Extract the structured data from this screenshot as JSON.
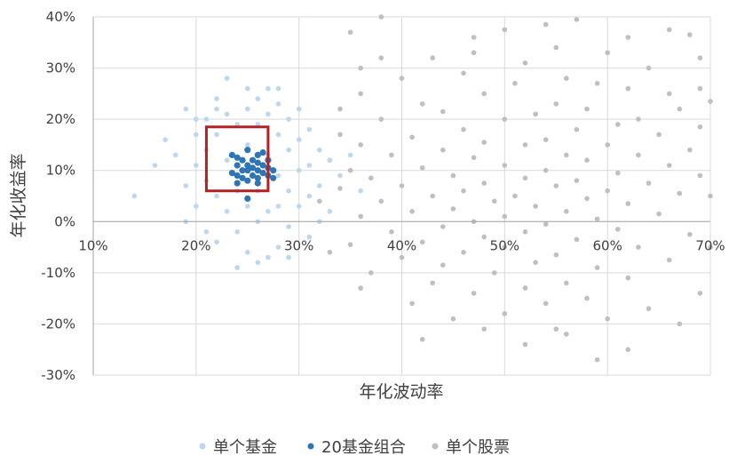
{
  "chart_data": {
    "type": "scatter",
    "title": "",
    "xlabel": "年化波动率",
    "ylabel": "年化收益率",
    "xlim": [
      0.1,
      0.7
    ],
    "ylim": [
      -0.3,
      0.4
    ],
    "x_ticks": [
      {
        "value": 0.1,
        "label": "10%"
      },
      {
        "value": 0.2,
        "label": "20%"
      },
      {
        "value": 0.3,
        "label": "30%"
      },
      {
        "value": 0.4,
        "label": "40%"
      },
      {
        "value": 0.5,
        "label": "50%"
      },
      {
        "value": 0.6,
        "label": "60%"
      },
      {
        "value": 0.7,
        "label": "70%"
      }
    ],
    "y_ticks": [
      {
        "value": 0.4,
        "label": "40%"
      },
      {
        "value": 0.3,
        "label": "30%"
      },
      {
        "value": 0.2,
        "label": "20%"
      },
      {
        "value": 0.1,
        "label": "10%"
      },
      {
        "value": 0.0,
        "label": "0%"
      },
      {
        "value": -0.1,
        "label": "-10%"
      },
      {
        "value": -0.2,
        "label": "-20%"
      },
      {
        "value": -0.3,
        "label": "-30%"
      }
    ],
    "grid": true,
    "legend_position": "bottom",
    "highlight_box": {
      "x": [
        0.21,
        0.27
      ],
      "y": [
        0.06,
        0.185
      ],
      "color": "#B22222"
    },
    "series": [
      {
        "name": "单个股票",
        "color": "#BFBFBF",
        "points": [
          [
            0.38,
            0.4
          ],
          [
            0.57,
            0.395
          ],
          [
            0.5,
            0.375
          ],
          [
            0.54,
            0.385
          ],
          [
            0.66,
            0.375
          ],
          [
            0.68,
            0.365
          ],
          [
            0.62,
            0.36
          ],
          [
            0.47,
            0.36
          ],
          [
            0.35,
            0.37
          ],
          [
            0.69,
            0.32
          ],
          [
            0.43,
            0.32
          ],
          [
            0.55,
            0.34
          ],
          [
            0.36,
            0.3
          ],
          [
            0.47,
            0.33
          ],
          [
            0.6,
            0.33
          ],
          [
            0.52,
            0.31
          ],
          [
            0.64,
            0.3
          ],
          [
            0.4,
            0.28
          ],
          [
            0.46,
            0.29
          ],
          [
            0.56,
            0.28
          ],
          [
            0.59,
            0.27
          ],
          [
            0.69,
            0.26
          ],
          [
            0.48,
            0.25
          ],
          [
            0.51,
            0.27
          ],
          [
            0.62,
            0.26
          ],
          [
            0.66,
            0.25
          ],
          [
            0.7,
            0.235
          ],
          [
            0.42,
            0.23
          ],
          [
            0.36,
            0.25
          ],
          [
            0.55,
            0.23
          ],
          [
            0.58,
            0.22
          ],
          [
            0.67,
            0.22
          ],
          [
            0.44,
            0.215
          ],
          [
            0.63,
            0.2
          ],
          [
            0.5,
            0.2
          ],
          [
            0.53,
            0.21
          ],
          [
            0.38,
            0.2
          ],
          [
            0.61,
            0.19
          ],
          [
            0.69,
            0.185
          ],
          [
            0.57,
            0.18
          ],
          [
            0.46,
            0.18
          ],
          [
            0.34,
            0.17
          ],
          [
            0.41,
            0.165
          ],
          [
            0.65,
            0.17
          ],
          [
            0.54,
            0.16
          ],
          [
            0.6,
            0.15
          ],
          [
            0.48,
            0.155
          ],
          [
            0.52,
            0.15
          ],
          [
            0.36,
            0.15
          ],
          [
            0.68,
            0.14
          ],
          [
            0.44,
            0.14
          ],
          [
            0.39,
            0.13
          ],
          [
            0.56,
            0.13
          ],
          [
            0.63,
            0.13
          ],
          [
            0.33,
            0.12
          ],
          [
            0.47,
            0.125
          ],
          [
            0.58,
            0.12
          ],
          [
            0.66,
            0.11
          ],
          [
            0.5,
            0.11
          ],
          [
            0.42,
            0.105
          ],
          [
            0.35,
            0.1
          ],
          [
            0.54,
            0.1
          ],
          [
            0.61,
            0.095
          ],
          [
            0.45,
            0.09
          ],
          [
            0.69,
            0.09
          ],
          [
            0.37,
            0.085
          ],
          [
            0.52,
            0.085
          ],
          [
            0.57,
            0.08
          ],
          [
            0.48,
            0.075
          ],
          [
            0.64,
            0.075
          ],
          [
            0.4,
            0.07
          ],
          [
            0.55,
            0.07
          ],
          [
            0.34,
            0.065
          ],
          [
            0.6,
            0.06
          ],
          [
            0.46,
            0.06
          ],
          [
            0.67,
            0.055
          ],
          [
            0.51,
            0.05
          ],
          [
            0.43,
            0.05
          ],
          [
            0.58,
            0.045
          ],
          [
            0.38,
            0.04
          ],
          [
            0.49,
            0.04
          ],
          [
            0.62,
            0.035
          ],
          [
            0.53,
            0.03
          ],
          [
            0.45,
            0.025
          ],
          [
            0.56,
            0.02
          ],
          [
            0.41,
            0.02
          ],
          [
            0.65,
            0.015
          ],
          [
            0.5,
            0.01
          ],
          [
            0.36,
            0.01
          ],
          [
            0.59,
            0.005
          ],
          [
            0.47,
            0.0
          ],
          [
            0.54,
            -0.005
          ],
          [
            0.44,
            -0.01
          ],
          [
            0.61,
            -0.015
          ],
          [
            0.39,
            -0.02
          ],
          [
            0.52,
            -0.02
          ],
          [
            0.68,
            -0.025
          ],
          [
            0.48,
            -0.03
          ],
          [
            0.57,
            -0.035
          ],
          [
            0.42,
            -0.04
          ],
          [
            0.35,
            -0.045
          ],
          [
            0.63,
            -0.05
          ],
          [
            0.5,
            -0.05
          ],
          [
            0.46,
            -0.06
          ],
          [
            0.55,
            -0.065
          ],
          [
            0.4,
            -0.07
          ],
          [
            0.66,
            -0.075
          ],
          [
            0.53,
            -0.08
          ],
          [
            0.44,
            -0.085
          ],
          [
            0.59,
            -0.09
          ],
          [
            0.37,
            -0.1
          ],
          [
            0.49,
            -0.1
          ],
          [
            0.62,
            -0.11
          ],
          [
            0.56,
            -0.12
          ],
          [
            0.43,
            -0.12
          ],
          [
            0.52,
            -0.13
          ],
          [
            0.69,
            -0.14
          ],
          [
            0.47,
            -0.14
          ],
          [
            0.58,
            -0.15
          ],
          [
            0.41,
            -0.16
          ],
          [
            0.54,
            -0.16
          ],
          [
            0.64,
            -0.17
          ],
          [
            0.5,
            -0.18
          ],
          [
            0.45,
            -0.19
          ],
          [
            0.6,
            -0.19
          ],
          [
            0.67,
            -0.2
          ],
          [
            0.48,
            -0.21
          ],
          [
            0.56,
            -0.22
          ],
          [
            0.42,
            -0.23
          ],
          [
            0.52,
            -0.24
          ],
          [
            0.62,
            -0.25
          ],
          [
            0.59,
            -0.27
          ],
          [
            0.55,
            -0.21
          ],
          [
            0.33,
            -0.06
          ],
          [
            0.36,
            -0.13
          ],
          [
            0.7,
            -0.05
          ],
          [
            0.7,
            0.05
          ],
          [
            0.32,
            0.04
          ],
          [
            0.34,
            0.22
          ],
          [
            0.38,
            0.32
          ]
        ]
      },
      {
        "name": "单个基金",
        "color": "#BDD7EE",
        "points": [
          [
            0.14,
            0.05
          ],
          [
            0.16,
            0.11
          ],
          [
            0.17,
            0.16
          ],
          [
            0.18,
            0.13
          ],
          [
            0.19,
            0.22
          ],
          [
            0.19,
            0.07
          ],
          [
            0.19,
            0.0
          ],
          [
            0.2,
            0.17
          ],
          [
            0.2,
            0.11
          ],
          [
            0.2,
            0.03
          ],
          [
            0.21,
            0.2
          ],
          [
            0.21,
            0.14
          ],
          [
            0.21,
            0.08
          ],
          [
            0.21,
            -0.02
          ],
          [
            0.22,
            0.24
          ],
          [
            0.22,
            0.17
          ],
          [
            0.22,
            0.05
          ],
          [
            0.22,
            -0.04
          ],
          [
            0.23,
            0.28
          ],
          [
            0.23,
            0.21
          ],
          [
            0.23,
            0.12
          ],
          [
            0.23,
            0.02
          ],
          [
            0.24,
            0.19
          ],
          [
            0.24,
            0.06
          ],
          [
            0.24,
            -0.02
          ],
          [
            0.25,
            0.26
          ],
          [
            0.25,
            0.22
          ],
          [
            0.25,
            0.15
          ],
          [
            0.25,
            0.03
          ],
          [
            0.25,
            -0.06
          ],
          [
            0.26,
            0.24
          ],
          [
            0.26,
            0.19
          ],
          [
            0.26,
            0.06
          ],
          [
            0.26,
            0.0
          ],
          [
            0.27,
            0.26
          ],
          [
            0.27,
            0.21
          ],
          [
            0.27,
            0.13
          ],
          [
            0.27,
            0.02
          ],
          [
            0.27,
            -0.07
          ],
          [
            0.28,
            0.23
          ],
          [
            0.28,
            0.17
          ],
          [
            0.28,
            0.09
          ],
          [
            0.28,
            0.03
          ],
          [
            0.28,
            -0.05
          ],
          [
            0.29,
            0.2
          ],
          [
            0.29,
            0.14
          ],
          [
            0.29,
            0.06
          ],
          [
            0.29,
            -0.01
          ],
          [
            0.3,
            0.22
          ],
          [
            0.3,
            0.16
          ],
          [
            0.3,
            0.1
          ],
          [
            0.3,
            0.03
          ],
          [
            0.31,
            0.18
          ],
          [
            0.31,
            0.11
          ],
          [
            0.31,
            0.05
          ],
          [
            0.32,
            0.14
          ],
          [
            0.32,
            0.07
          ],
          [
            0.33,
            0.12
          ],
          [
            0.33,
            0.02
          ],
          [
            0.34,
            0.09
          ],
          [
            0.35,
            0.13
          ],
          [
            0.36,
            0.06
          ],
          [
            0.29,
            -0.07
          ],
          [
            0.24,
            -0.09
          ],
          [
            0.26,
            -0.08
          ],
          [
            0.22,
            0.22
          ],
          [
            0.2,
            0.2
          ],
          [
            0.31,
            -0.03
          ],
          [
            0.28,
            0.26
          ],
          [
            0.32,
            0.0
          ]
        ]
      },
      {
        "name": "20基金组合",
        "color": "#2E75B6",
        "points": [
          [
            0.235,
            0.13
          ],
          [
            0.24,
            0.11
          ],
          [
            0.24,
            0.09
          ],
          [
            0.245,
            0.12
          ],
          [
            0.245,
            0.1
          ],
          [
            0.25,
            0.14
          ],
          [
            0.25,
            0.11
          ],
          [
            0.25,
            0.08
          ],
          [
            0.255,
            0.12
          ],
          [
            0.255,
            0.09
          ],
          [
            0.26,
            0.13
          ],
          [
            0.26,
            0.1
          ],
          [
            0.26,
            0.085
          ],
          [
            0.265,
            0.11
          ],
          [
            0.265,
            0.095
          ],
          [
            0.27,
            0.12
          ],
          [
            0.27,
            0.09
          ],
          [
            0.275,
            0.1
          ],
          [
            0.25,
            0.1
          ],
          [
            0.24,
            0.075
          ],
          [
            0.26,
            0.115
          ],
          [
            0.245,
            0.085
          ],
          [
            0.255,
            0.105
          ],
          [
            0.235,
            0.095
          ],
          [
            0.27,
            0.105
          ],
          [
            0.25,
            0.045
          ],
          [
            0.265,
            0.135
          ],
          [
            0.275,
            0.085
          ],
          [
            0.24,
            0.125
          ],
          [
            0.26,
            0.075
          ]
        ]
      }
    ]
  }
}
